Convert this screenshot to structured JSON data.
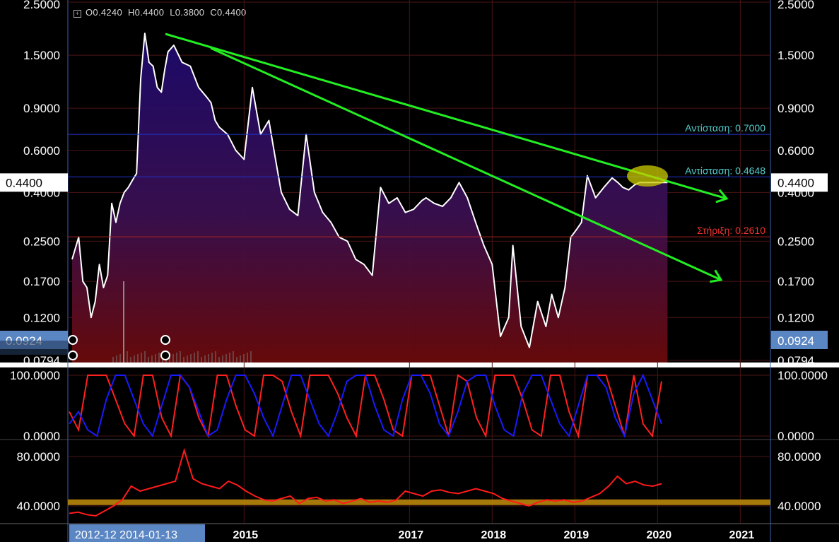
{
  "ohlc": {
    "open": "O0.4240",
    "high": "H0.4400",
    "low": "L0.3800",
    "close": "C0.4400"
  },
  "colors": {
    "price_line": "#ffffff",
    "trend": "#22ee22",
    "resistance": "#55cccc",
    "support": "#ee3333",
    "stoch_k": "#ff2020",
    "stoch_d": "#1a1aff",
    "rsi": "#ff1a1a"
  },
  "chart_data": [
    {
      "type": "line",
      "scale": "log",
      "ylim": [
        0.0794,
        2.5
      ],
      "y_ticks": [
        "2.5000",
        "1.5000",
        "0.9000",
        "0.6000",
        "0.4000",
        "0.2500",
        "0.1700",
        "0.1200",
        "0.0794"
      ],
      "x_ticks": [
        "2015",
        "2017",
        "2018",
        "2019",
        "2020",
        "2021"
      ],
      "x_range_label_start": "2012-12",
      "x_range_label_end": "2014-01-13",
      "current_price": "0.4400",
      "low_marker": "0.0924",
      "series": [
        {
          "x": [
            2012.92,
            2013.0,
            2013.05,
            2013.1,
            2013.15,
            2013.2,
            2013.25,
            2013.3,
            2013.35,
            2013.4,
            2013.45,
            2013.5,
            2013.55,
            2013.6,
            2013.65,
            2013.7,
            2013.75,
            2013.8,
            2013.85,
            2013.9,
            2013.95,
            2014.0,
            2014.04,
            2014.08,
            2014.15,
            2014.25,
            2014.35,
            2014.45,
            2014.55,
            2014.6,
            2014.65,
            2014.7,
            2014.8,
            2014.9,
            2015.0,
            2015.1,
            2015.2,
            2015.3,
            2015.38,
            2015.45,
            2015.55,
            2015.65,
            2015.75,
            2015.85,
            2015.95,
            2016.05,
            2016.15,
            2016.25,
            2016.35,
            2016.45,
            2016.55,
            2016.65,
            2016.75,
            2016.85,
            2016.95,
            2017.05,
            2017.15,
            2017.2,
            2017.3,
            2017.4,
            2017.5,
            2017.6,
            2017.7,
            2017.8,
            2017.9,
            2018.0,
            2018.1,
            2018.2,
            2018.25,
            2018.35,
            2018.45,
            2018.55,
            2018.65,
            2018.72,
            2018.8,
            2018.88,
            2018.95,
            2019.02,
            2019.08,
            2019.15,
            2019.25,
            2019.35,
            2019.45,
            2019.52,
            2019.58,
            2019.65,
            2019.72,
            2019.78,
            2019.85,
            2019.92,
            2020.0,
            2020.06,
            2020.12
          ],
          "y": [
            0.21,
            0.26,
            0.17,
            0.16,
            0.12,
            0.14,
            0.2,
            0.16,
            0.18,
            0.36,
            0.3,
            0.36,
            0.4,
            0.42,
            0.45,
            0.48,
            1.2,
            1.85,
            1.4,
            1.35,
            1.1,
            1.05,
            1.3,
            1.55,
            1.65,
            1.4,
            1.35,
            1.1,
            1.0,
            0.95,
            0.8,
            0.75,
            0.7,
            0.6,
            0.55,
            1.1,
            0.7,
            0.8,
            0.55,
            0.4,
            0.34,
            0.32,
            0.7,
            0.4,
            0.33,
            0.3,
            0.26,
            0.25,
            0.21,
            0.2,
            0.18,
            0.42,
            0.36,
            0.38,
            0.33,
            0.34,
            0.37,
            0.38,
            0.36,
            0.35,
            0.38,
            0.44,
            0.38,
            0.3,
            0.24,
            0.2,
            0.1,
            0.12,
            0.24,
            0.11,
            0.09,
            0.14,
            0.11,
            0.15,
            0.12,
            0.16,
            0.26,
            0.28,
            0.3,
            0.47,
            0.38,
            0.42,
            0.46,
            0.44,
            0.42,
            0.41,
            0.43,
            0.44,
            0.44,
            0.44,
            0.44,
            0.44,
            0.44
          ]
        }
      ],
      "annotations": [
        {
          "label": "Αντίσταση: 0.7000",
          "value": 0.7
        },
        {
          "label": "Αντίσταση: 0.4648",
          "value": 0.4648
        },
        {
          "label": "Στήριξη: 0.2610",
          "value": 0.261
        }
      ]
    },
    {
      "type": "line",
      "ylim": [
        0,
        100
      ],
      "y_ticks": [
        "100.0000",
        "0.0000"
      ],
      "series": [
        {
          "values": [
            40,
            10,
            100,
            100,
            100,
            60,
            20,
            0,
            100,
            100,
            30,
            0,
            100,
            80,
            30,
            0,
            100,
            100,
            50,
            10,
            0,
            100,
            100,
            90,
            40,
            0,
            100,
            100,
            100,
            70,
            30,
            0,
            100,
            100,
            60,
            10,
            0,
            100,
            100,
            100,
            50,
            0,
            100,
            90,
            30,
            0,
            100,
            100,
            100,
            60,
            10,
            0,
            100,
            100,
            40,
            0,
            100,
            100,
            100,
            50,
            0,
            100,
            20,
            0,
            90
          ]
        },
        {
          "values": [
            20,
            40,
            10,
            0,
            60,
            100,
            100,
            60,
            20,
            0,
            50,
            100,
            100,
            80,
            40,
            0,
            10,
            60,
            100,
            100,
            70,
            30,
            0,
            50,
            100,
            100,
            60,
            20,
            0,
            40,
            90,
            100,
            100,
            50,
            10,
            0,
            60,
            100,
            100,
            70,
            20,
            0,
            40,
            90,
            100,
            100,
            50,
            10,
            0,
            70,
            100,
            100,
            60,
            20,
            0,
            50,
            100,
            100,
            80,
            30,
            0,
            70,
            100,
            60,
            20
          ]
        }
      ]
    },
    {
      "type": "line",
      "ylim": [
        30,
        90
      ],
      "y_ticks": [
        "80.0000",
        "40.0000"
      ],
      "reference": 43,
      "series": [
        {
          "values": [
            34,
            35,
            33,
            32,
            36,
            40,
            45,
            56,
            52,
            54,
            56,
            58,
            60,
            85,
            62,
            58,
            56,
            54,
            60,
            57,
            52,
            48,
            45,
            44,
            46,
            48,
            42,
            46,
            47,
            44,
            45,
            42,
            44,
            46,
            43,
            44,
            43,
            45,
            52,
            50,
            48,
            52,
            53,
            51,
            50,
            52,
            54,
            52,
            50,
            46,
            44,
            42,
            40,
            43,
            45,
            44,
            45,
            43,
            44,
            47,
            50,
            56,
            64,
            58,
            60,
            57,
            56,
            58
          ]
        }
      ]
    }
  ]
}
